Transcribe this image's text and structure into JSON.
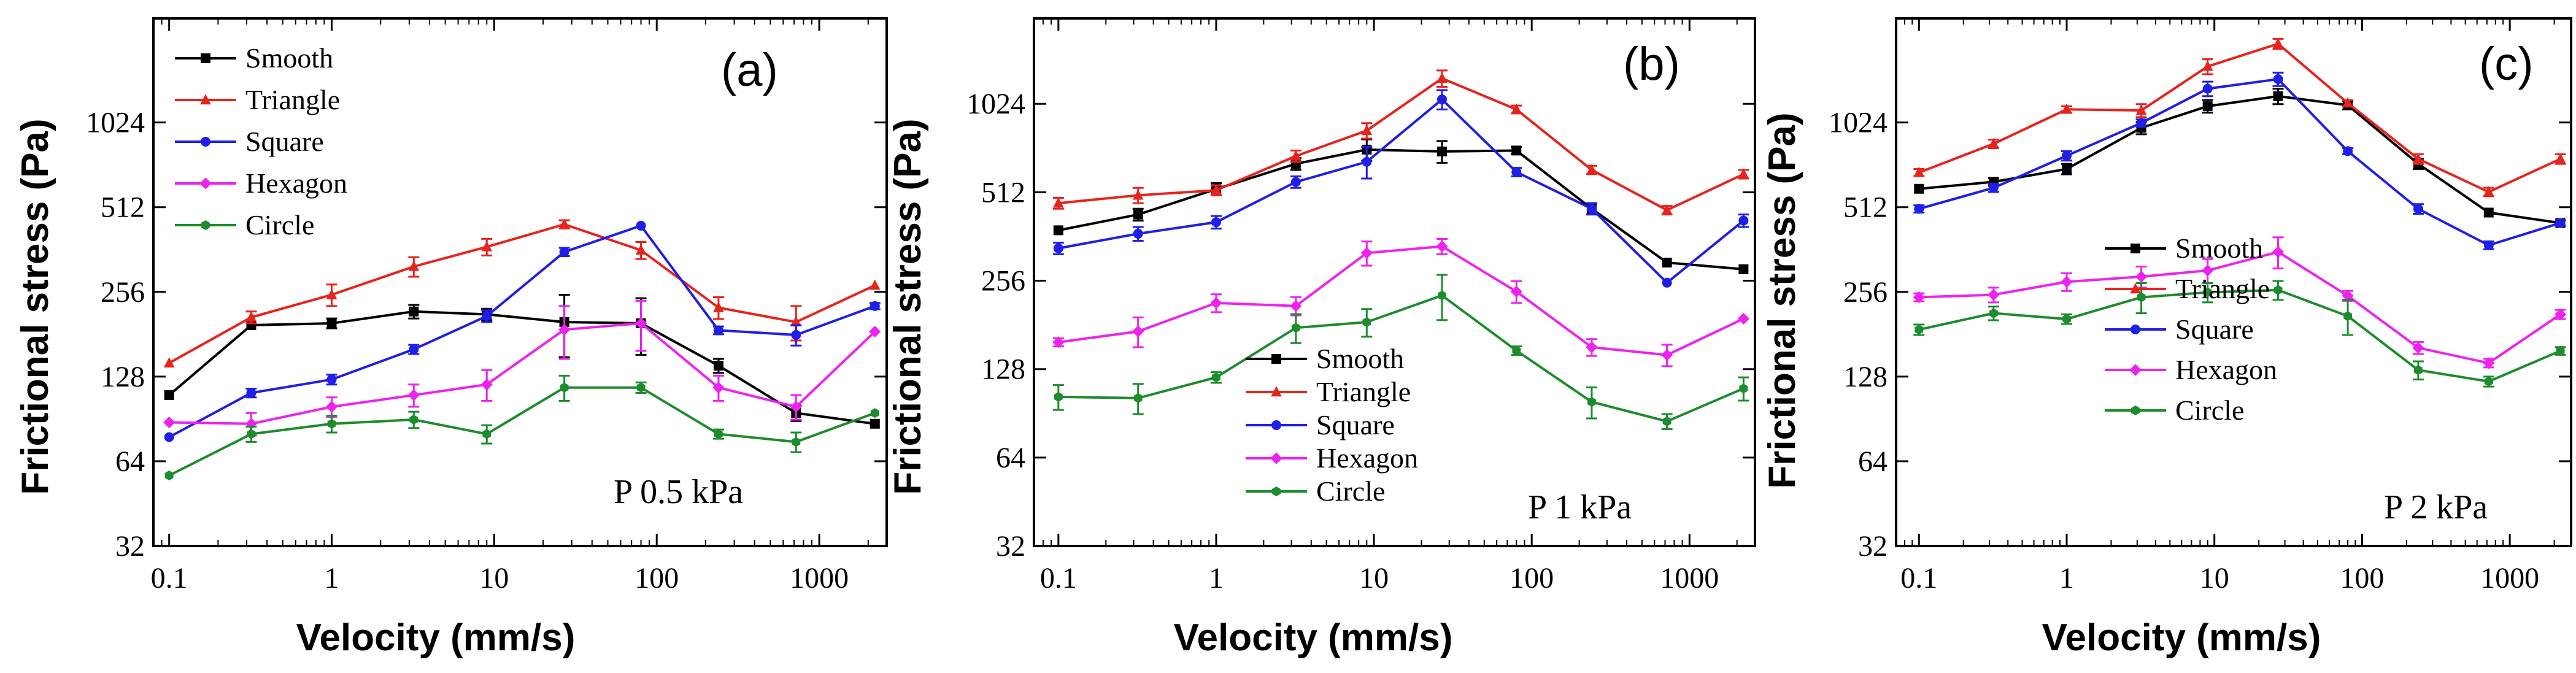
{
  "chart_data": [
    {
      "type": "line",
      "panel_label": "(a)",
      "annotation": "P 0.5 kPa",
      "xlabel": "Velocity (mm/s)",
      "ylabel": "Frictional stress (Pa)",
      "xscale": "log",
      "yscale": "log2",
      "xlim": [
        0.08,
        2600
      ],
      "ylim": [
        32,
        2400
      ],
      "x_ticks": [
        0.1,
        1,
        10,
        100,
        1000
      ],
      "x_tick_labels": [
        "0.1",
        "1",
        "10",
        "100",
        "1000"
      ],
      "y_ticks": [
        32,
        64,
        128,
        256,
        512,
        1024
      ],
      "y_tick_labels": [
        "32",
        "64",
        "128",
        "256",
        "512",
        "1024"
      ],
      "legend_position": "top-left",
      "x": [
        0.1,
        0.32,
        1,
        3.2,
        9,
        27,
        80,
        240,
        720,
        2200
      ],
      "series": [
        {
          "name": "Smooth",
          "color": "#000000",
          "marker": "square",
          "values": [
            110,
            195,
            198,
            218,
            213,
            200,
            198,
            140,
            95,
            87
          ],
          "errors": [
            0,
            0,
            8,
            12,
            10,
            50,
            45,
            8,
            6,
            0
          ]
        },
        {
          "name": "Triangle",
          "color": "#e8231c",
          "marker": "triangle",
          "values": [
            143,
            208,
            250,
            315,
            370,
            445,
            360,
            225,
            200,
            270
          ],
          "errors": [
            0,
            10,
            22,
            25,
            25,
            15,
            25,
            20,
            28,
            0
          ]
        },
        {
          "name": "Square",
          "color": "#1f1fe6",
          "marker": "circle",
          "values": [
            78,
            112,
            125,
            160,
            210,
            355,
            440,
            187,
            180,
            228
          ],
          "errors": [
            0,
            4,
            5,
            6,
            10,
            12,
            0,
            6,
            15,
            6
          ]
        },
        {
          "name": "Hexagon",
          "color": "#ee22ee",
          "marker": "diamond",
          "values": [
            88,
            87,
            100,
            110,
            120,
            188,
            198,
            117,
            100,
            185
          ],
          "errors": [
            0,
            8,
            8,
            10,
            15,
            40,
            40,
            12,
            10,
            0
          ]
        },
        {
          "name": "Circle",
          "color": "#1c8c2c",
          "marker": "hexagon",
          "values": [
            57,
            80,
            87,
            90,
            80,
            117,
            117,
            80,
            75,
            95
          ],
          "errors": [
            0,
            5,
            6,
            6,
            6,
            12,
            5,
            3,
            6,
            0
          ]
        }
      ]
    },
    {
      "type": "line",
      "panel_label": "(b)",
      "annotation": "P 1 kPa",
      "xlabel": "Velocity (mm/s)",
      "ylabel": "Frictional stress (Pa)",
      "xscale": "log",
      "yscale": "log2",
      "xlim": [
        0.07,
        2600
      ],
      "ylim": [
        32,
        2000
      ],
      "x_ticks": [
        0.1,
        1,
        10,
        100,
        1000
      ],
      "x_tick_labels": [
        "0.1",
        "1",
        "10",
        "100",
        "1000"
      ],
      "y_ticks": [
        32,
        64,
        128,
        256,
        512,
        1024
      ],
      "y_tick_labels": [
        "32",
        "64",
        "128",
        "256",
        "512",
        "1024"
      ],
      "legend_position": "bottom-left",
      "x": [
        0.1,
        0.32,
        1,
        3.2,
        9,
        27,
        80,
        240,
        720,
        2200
      ],
      "series": [
        {
          "name": "Smooth",
          "color": "#000000",
          "marker": "square",
          "values": [
            380,
            430,
            525,
            640,
            715,
            705,
            710,
            450,
            295,
            280
          ],
          "errors": [
            0,
            20,
            25,
            30,
            60,
            60,
            20,
            20,
            0,
            0
          ]
        },
        {
          "name": "Triangle",
          "color": "#e8231c",
          "marker": "triangle",
          "values": [
            470,
            500,
            520,
            680,
            830,
            1250,
            980,
            610,
            445,
            590
          ],
          "errors": [
            20,
            30,
            20,
            30,
            50,
            80,
            30,
            20,
            15,
            20
          ]
        },
        {
          "name": "Square",
          "color": "#1f1fe6",
          "marker": "circle",
          "values": [
            330,
            370,
            405,
            555,
            650,
            1060,
            600,
            450,
            252,
            410
          ],
          "errors": [
            15,
            20,
            20,
            25,
            80,
            80,
            20,
            20,
            0,
            20
          ]
        },
        {
          "name": "Hexagon",
          "color": "#ee22ee",
          "marker": "diamond",
          "values": [
            158,
            172,
            215,
            210,
            318,
            335,
            235,
            152,
            143,
            190
          ],
          "errors": [
            5,
            20,
            15,
            15,
            30,
            20,
            20,
            10,
            12,
            0
          ]
        },
        {
          "name": "Circle",
          "color": "#1c8c2c",
          "marker": "hexagon",
          "values": [
            103,
            102,
            120,
            177,
            185,
            228,
            148,
            99,
            85,
            110
          ],
          "errors": [
            10,
            12,
            5,
            20,
            20,
            40,
            5,
            12,
            5,
            10
          ]
        }
      ]
    },
    {
      "type": "line",
      "panel_label": "(c)",
      "annotation": "P 2 kPa",
      "xlabel": "Velocity (mm/s)",
      "ylabel": "Frictional stress (Pa)",
      "xscale": "log",
      "yscale": "log2",
      "xlim": [
        0.07,
        2600
      ],
      "ylim": [
        32,
        2400
      ],
      "x_ticks": [
        0.1,
        1,
        10,
        100,
        1000
      ],
      "x_tick_labels": [
        "0.1",
        "1",
        "10",
        "100",
        "1000"
      ],
      "y_ticks": [
        32,
        64,
        128,
        256,
        512,
        1024
      ],
      "y_tick_labels": [
        "32",
        "64",
        "128",
        "256",
        "512",
        "1024"
      ],
      "legend_position": "bottom-left",
      "x": [
        0.1,
        0.32,
        1,
        3.2,
        9,
        27,
        80,
        240,
        720,
        2200
      ],
      "series": [
        {
          "name": "Smooth",
          "color": "#000000",
          "marker": "square",
          "values": [
            595,
            630,
            700,
            980,
            1170,
            1270,
            1180,
            730,
            490,
            450
          ],
          "errors": [
            0,
            20,
            30,
            50,
            60,
            80,
            40,
            30,
            0,
            0
          ]
        },
        {
          "name": "Triangle",
          "color": "#e8231c",
          "marker": "triangle",
          "values": [
            680,
            860,
            1140,
            1130,
            1620,
            1950,
            1200,
            760,
            580,
            760
          ],
          "errors": [
            20,
            30,
            30,
            60,
            100,
            80,
            30,
            30,
            20,
            30
          ]
        },
        {
          "name": "Square",
          "color": "#1f1fe6",
          "marker": "circle",
          "values": [
            505,
            600,
            780,
            1020,
            1350,
            1460,
            810,
            505,
            375,
            450
          ],
          "errors": [
            15,
            20,
            30,
            30,
            80,
            80,
            20,
            20,
            12,
            10
          ]
        },
        {
          "name": "Hexagon",
          "color": "#ee22ee",
          "marker": "diamond",
          "values": [
            245,
            250,
            278,
            290,
            305,
            355,
            248,
            162,
            143,
            213
          ],
          "errors": [
            8,
            15,
            20,
            25,
            30,
            45,
            10,
            8,
            5,
            8
          ]
        },
        {
          "name": "Circle",
          "color": "#1c8c2c",
          "marker": "hexagon",
          "values": [
            188,
            215,
            205,
            245,
            255,
            260,
            210,
            135,
            123,
            158
          ],
          "errors": [
            8,
            12,
            8,
            30,
            20,
            20,
            30,
            10,
            5,
            5
          ]
        }
      ]
    }
  ]
}
